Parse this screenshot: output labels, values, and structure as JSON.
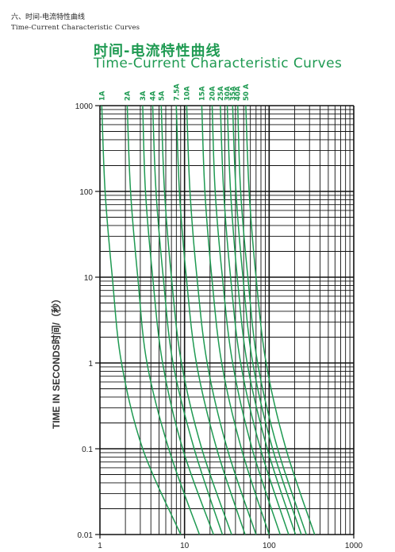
{
  "header": {
    "section_title": "六、时间-电流特性曲线",
    "section_subtitle": "Time-Current Characteristic Curves"
  },
  "chart_data": {
    "type": "line",
    "title_cn": "时间-电流特性曲线",
    "title": "Time-Current Characteristic Curves",
    "ylabel": "TIME IN SECONDS时间/（秒）",
    "xlabel": "",
    "x_scale": "log",
    "y_scale": "log",
    "xlim": [
      1,
      1000
    ],
    "ylim": [
      0.01,
      1000
    ],
    "x_ticks": [
      "1",
      "10",
      "100",
      "1000"
    ],
    "y_ticks": [
      "1000",
      "100",
      "10",
      "1",
      "0.1",
      "0.01"
    ],
    "grid": true,
    "line_color": "#1f9a52",
    "series": [
      {
        "name": "1A",
        "points": [
          [
            1.05,
            1000
          ],
          [
            1.15,
            100
          ],
          [
            1.4,
            10
          ],
          [
            1.8,
            1
          ],
          [
            3.2,
            0.1
          ],
          [
            9,
            0.01
          ]
        ]
      },
      {
        "name": "2A",
        "points": [
          [
            2.1,
            1000
          ],
          [
            2.3,
            100
          ],
          [
            2.8,
            10
          ],
          [
            3.6,
            1
          ],
          [
            6.5,
            0.1
          ],
          [
            15,
            0.01
          ]
        ]
      },
      {
        "name": "3A",
        "points": [
          [
            3.2,
            1000
          ],
          [
            3.45,
            100
          ],
          [
            4.2,
            10
          ],
          [
            5.5,
            1
          ],
          [
            9.5,
            0.1
          ],
          [
            22,
            0.01
          ]
        ]
      },
      {
        "name": "4A",
        "points": [
          [
            4.2,
            1000
          ],
          [
            4.6,
            100
          ],
          [
            5.6,
            10
          ],
          [
            7.3,
            1
          ],
          [
            13,
            0.1
          ],
          [
            28,
            0.01
          ]
        ]
      },
      {
        "name": "5A",
        "points": [
          [
            5.3,
            1000
          ],
          [
            5.8,
            100
          ],
          [
            7,
            10
          ],
          [
            9.2,
            1
          ],
          [
            16,
            0.1
          ],
          [
            36,
            0.01
          ]
        ]
      },
      {
        "name": "7.5A",
        "points": [
          [
            8,
            1000
          ],
          [
            8.7,
            100
          ],
          [
            10.5,
            10
          ],
          [
            13.8,
            1
          ],
          [
            24,
            0.1
          ],
          [
            52,
            0.01
          ]
        ]
      },
      {
        "name": "10A",
        "points": [
          [
            10.6,
            1000
          ],
          [
            11.6,
            100
          ],
          [
            14,
            10
          ],
          [
            18.5,
            1
          ],
          [
            32,
            0.1
          ],
          [
            70,
            0.01
          ]
        ]
      },
      {
        "name": "15A",
        "points": [
          [
            16,
            1000
          ],
          [
            17.4,
            100
          ],
          [
            21,
            10
          ],
          [
            27.5,
            1
          ],
          [
            47,
            0.1
          ],
          [
            100,
            0.01
          ]
        ]
      },
      {
        "name": "20A",
        "points": [
          [
            21.2,
            1000
          ],
          [
            23,
            100
          ],
          [
            28,
            10
          ],
          [
            37,
            1
          ],
          [
            63,
            0.1
          ],
          [
            135,
            0.01
          ]
        ]
      },
      {
        "name": "25A",
        "points": [
          [
            26.5,
            1000
          ],
          [
            29,
            100
          ],
          [
            35,
            10
          ],
          [
            46,
            1
          ],
          [
            79,
            0.1
          ],
          [
            170,
            0.01
          ]
        ]
      },
      {
        "name": "30A",
        "points": [
          [
            32,
            1000
          ],
          [
            35,
            100
          ],
          [
            42,
            10
          ],
          [
            55,
            1
          ],
          [
            95,
            0.1
          ],
          [
            205,
            0.01
          ]
        ]
      },
      {
        "name": "35A",
        "points": [
          [
            37,
            1000
          ],
          [
            40.5,
            100
          ],
          [
            49,
            10
          ],
          [
            64,
            1
          ],
          [
            110,
            0.1
          ],
          [
            240,
            0.01
          ]
        ]
      },
      {
        "name": "40A",
        "points": [
          [
            42.5,
            1000
          ],
          [
            46,
            100
          ],
          [
            56,
            10
          ],
          [
            73,
            1
          ],
          [
            126,
            0.1
          ],
          [
            275,
            0.01
          ]
        ]
      },
      {
        "name": "50 A",
        "points": [
          [
            53,
            1000
          ],
          [
            58,
            100
          ],
          [
            70,
            10
          ],
          [
            92,
            1
          ],
          [
            158,
            0.1
          ],
          [
            345,
            0.01
          ]
        ]
      }
    ]
  }
}
